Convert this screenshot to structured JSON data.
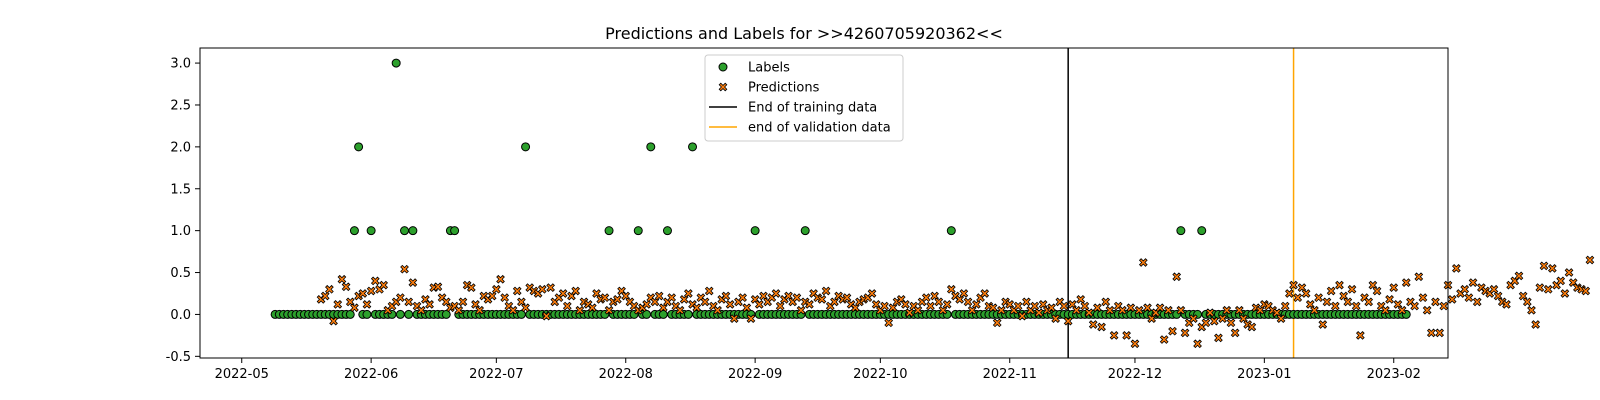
{
  "chart_data": {
    "type": "scatter",
    "title": "Predictions and Labels for >>4260705920362<<",
    "xlabel": "",
    "ylabel": "",
    "x_axis_type": "date",
    "xlim": [
      "2022-04-21",
      "2023-02-14"
    ],
    "ylim": [
      -0.52,
      3.18
    ],
    "x_ticks": [
      "2022-05",
      "2022-06",
      "2022-07",
      "2022-08",
      "2022-09",
      "2022-10",
      "2022-11",
      "2022-12",
      "2023-01",
      "2023-02"
    ],
    "y_ticks": [
      "-0.5",
      "0.0",
      "0.5",
      "1.0",
      "1.5",
      "2.0",
      "2.5",
      "3.0"
    ],
    "grid": false,
    "legend_position": "top-center",
    "series": [
      {
        "name": "Labels",
        "marker": "circle",
        "color": "#2ca02c",
        "start_date": "2022-05-09",
        "end_date": "2023-02-04",
        "default_value": 0.0,
        "nonzero_points": [
          {
            "x": "2022-05-28",
            "y": 1.0
          },
          {
            "x": "2022-05-29",
            "y": 2.0
          },
          {
            "x": "2022-06-01",
            "y": 1.0
          },
          {
            "x": "2022-06-07",
            "y": 3.0
          },
          {
            "x": "2022-06-09",
            "y": 1.0
          },
          {
            "x": "2022-06-11",
            "y": 1.0
          },
          {
            "x": "2022-06-20",
            "y": 1.0
          },
          {
            "x": "2022-06-21",
            "y": 1.0
          },
          {
            "x": "2022-07-08",
            "y": 2.0
          },
          {
            "x": "2022-07-28",
            "y": 1.0
          },
          {
            "x": "2022-08-04",
            "y": 1.0
          },
          {
            "x": "2022-08-07",
            "y": 2.0
          },
          {
            "x": "2022-08-11",
            "y": 1.0
          },
          {
            "x": "2022-08-17",
            "y": 2.0
          },
          {
            "x": "2022-09-01",
            "y": 1.0
          },
          {
            "x": "2022-09-13",
            "y": 1.0
          },
          {
            "x": "2022-10-18",
            "y": 1.0
          },
          {
            "x": "2022-12-12",
            "y": 1.0
          },
          {
            "x": "2022-12-17",
            "y": 1.0
          }
        ]
      },
      {
        "name": "Predictions",
        "marker": "x",
        "color": "#ff7f0e",
        "start_date": "2022-05-20",
        "values": [
          0.18,
          0.22,
          0.3,
          -0.08,
          0.12,
          0.42,
          0.33,
          0.15,
          0.08,
          0.22,
          0.25,
          0.12,
          0.28,
          0.4,
          0.3,
          0.35,
          0.05,
          0.1,
          0.15,
          0.2,
          0.54,
          0.15,
          0.38,
          0.1,
          0.05,
          0.18,
          0.12,
          0.32,
          0.33,
          0.2,
          0.15,
          0.08,
          0.1,
          0.05,
          0.15,
          0.35,
          0.32,
          0.12,
          0.05,
          0.22,
          0.18,
          0.22,
          0.3,
          0.42,
          0.2,
          0.1,
          0.05,
          0.28,
          0.15,
          0.08,
          0.32,
          0.28,
          0.25,
          0.3,
          -0.02,
          0.32,
          0.15,
          0.2,
          0.25,
          0.1,
          0.22,
          0.28,
          0.05,
          0.15,
          0.12,
          0.08,
          0.25,
          0.18,
          0.2,
          0.05,
          0.15,
          0.18,
          0.28,
          0.22,
          0.15,
          0.1,
          0.05,
          0.08,
          0.12,
          0.2,
          0.15,
          0.22,
          0.08,
          0.15,
          0.2,
          0.1,
          0.05,
          0.18,
          0.25,
          0.12,
          0.08,
          0.2,
          0.15,
          0.28,
          0.1,
          0.05,
          0.18,
          0.22,
          0.12,
          -0.05,
          0.15,
          0.2,
          0.08,
          -0.05,
          0.18,
          0.12,
          0.22,
          0.15,
          0.2,
          0.25,
          0.1,
          0.18,
          0.22,
          0.15,
          0.2,
          0.05,
          0.15,
          0.12,
          0.25,
          0.2,
          0.18,
          0.28,
          0.1,
          0.15,
          0.22,
          0.18,
          0.2,
          0.12,
          0.08,
          0.15,
          0.18,
          0.2,
          0.25,
          0.12,
          0.05,
          0.1,
          -0.1,
          0.08,
          0.15,
          0.18,
          0.12,
          0.02,
          0.1,
          0.05,
          0.15,
          0.2,
          0.1,
          0.22,
          0.15,
          0.05,
          0.12,
          0.3,
          0.22,
          0.18,
          0.25,
          0.15,
          0.05,
          0.12,
          0.2,
          0.25,
          0.1,
          0.08,
          -0.1,
          0.05,
          0.15,
          0.12,
          0.05,
          0.1,
          -0.02,
          0.15,
          0.05,
          0.1,
          0.02,
          0.12,
          0.05,
          0.08,
          -0.05,
          0.15,
          0.1,
          -0.08,
          0.12,
          0.05,
          0.18,
          0.1,
          0.02,
          -0.12,
          0.08,
          -0.15,
          0.15,
          0.05,
          -0.25,
          0.1,
          0.05,
          -0.25,
          0.08,
          -0.35,
          0.05,
          0.62,
          0.08,
          -0.05,
          0.02,
          0.08,
          -0.3,
          0.05,
          -0.2,
          0.45,
          0.05,
          -0.22,
          -0.1,
          -0.05,
          -0.35,
          -0.15,
          -0.1,
          0.02,
          -0.08,
          -0.28,
          -0.05,
          0.05,
          -0.1,
          -0.22,
          0.05,
          -0.05,
          -0.12,
          -0.15,
          0.08,
          0.05,
          0.12,
          0.1,
          0.05,
          0.02,
          -0.05,
          0.1,
          0.25,
          0.35,
          0.2,
          0.32,
          0.25,
          0.12,
          0.05,
          0.2,
          -0.12,
          0.15,
          0.28,
          0.1,
          0.35,
          0.22,
          0.15,
          0.3,
          0.1,
          -0.25,
          0.2,
          0.15,
          0.35,
          0.28,
          0.1,
          0.05,
          0.18,
          0.32,
          0.12,
          0.05,
          0.38,
          0.15,
          0.1,
          0.45,
          0.2,
          0.05,
          -0.22,
          0.15,
          -0.22,
          0.1,
          0.35,
          0.18,
          0.55,
          0.25,
          0.3,
          0.2,
          0.38,
          0.15,
          0.32,
          0.28,
          0.25,
          0.3,
          0.22,
          0.15,
          0.12,
          0.35,
          0.4,
          0.46,
          0.22,
          0.15,
          0.05,
          -0.12,
          0.32,
          0.58,
          0.3,
          0.55,
          0.35,
          0.4,
          0.25,
          0.5,
          0.38,
          0.32,
          0.3,
          0.28,
          0.65
        ]
      }
    ],
    "reference_lines": [
      {
        "name": "End of training data",
        "x": "2022-11-15",
        "color": "#000000"
      },
      {
        "name": "end of validation data",
        "x": "2023-01-08",
        "color": "#ffa500"
      }
    ]
  }
}
